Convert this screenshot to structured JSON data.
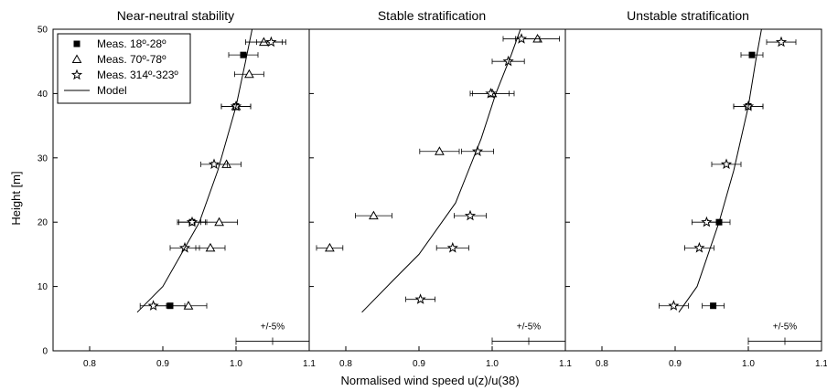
{
  "chart_data": {
    "type": "scatter",
    "xlabel": "Normalised wind speed u(z)/u(38)",
    "ylabel": "Height [m]",
    "xlim": [
      0.75,
      1.1
    ],
    "ylim": [
      0,
      50
    ],
    "x_ticks": [
      "0.8",
      "0.9",
      "1.0",
      "1.1"
    ],
    "y_ticks": [
      "0",
      "10",
      "20",
      "30",
      "40",
      "50"
    ],
    "legend": {
      "placement": "top-left",
      "entries": [
        {
          "label": "Meas. 18º-28º",
          "marker": "filled-square"
        },
        {
          "label": "Meas. 70º-78º",
          "marker": "open-triangle"
        },
        {
          "label": "Meas. 314º-323º",
          "marker": "open-star"
        },
        {
          "label": "Model",
          "marker": "line"
        }
      ]
    },
    "error_band": {
      "label": "+/-5%",
      "center": 1.05,
      "half_width": 0.05,
      "y": 1.5
    },
    "panels": [
      {
        "title": "Near-neutral stability",
        "series": [
          {
            "name": "Meas. 18º-28º",
            "marker": "filled-square",
            "points": [
              {
                "x": 0.91,
                "y": 7,
                "xerr": 0.02
              },
              {
                "x": 0.94,
                "y": 20,
                "xerr": 0.018
              },
              {
                "x": 1.0,
                "y": 38,
                "xerr": 0.02
              },
              {
                "x": 1.01,
                "y": 46,
                "xerr": 0.02
              }
            ]
          },
          {
            "name": "Meas. 70º-78º",
            "marker": "open-triangle",
            "points": [
              {
                "x": 0.935,
                "y": 7,
                "xerr": 0.025
              },
              {
                "x": 0.965,
                "y": 16,
                "xerr": 0.02
              },
              {
                "x": 0.977,
                "y": 20,
                "xerr": 0.025
              },
              {
                "x": 0.987,
                "y": 29,
                "xerr": 0.02
              },
              {
                "x": 1.0,
                "y": 38,
                "xerr": 0.02
              },
              {
                "x": 1.018,
                "y": 43,
                "xerr": 0.02
              },
              {
                "x": 1.038,
                "y": 48,
                "xerr": 0.025
              }
            ]
          },
          {
            "name": "Meas. 314º-323º",
            "marker": "open-star",
            "points": [
              {
                "x": 0.887,
                "y": 7,
                "xerr": 0.018
              },
              {
                "x": 0.93,
                "y": 16,
                "xerr": 0.02
              },
              {
                "x": 0.94,
                "y": 20,
                "xerr": 0.02
              },
              {
                "x": 0.97,
                "y": 29,
                "xerr": 0.018
              },
              {
                "x": 1.0,
                "y": 38,
                "xerr": 0.02
              },
              {
                "x": 1.048,
                "y": 48,
                "xerr": 0.02
              }
            ]
          },
          {
            "name": "Model",
            "marker": "line",
            "points": [
              {
                "x": 0.865,
                "y": 6
              },
              {
                "x": 0.9,
                "y": 10
              },
              {
                "x": 0.95,
                "y": 20
              },
              {
                "x": 0.975,
                "y": 28
              },
              {
                "x": 1.0,
                "y": 38
              },
              {
                "x": 1.013,
                "y": 45
              },
              {
                "x": 1.022,
                "y": 50
              }
            ]
          }
        ]
      },
      {
        "title": "Stable stratification",
        "series": [
          {
            "name": "Meas. 70º-78º",
            "marker": "open-triangle",
            "points": [
              {
                "x": 0.778,
                "y": 16,
                "xerr": 0.018
              },
              {
                "x": 0.838,
                "y": 21,
                "xerr": 0.025
              },
              {
                "x": 0.928,
                "y": 31,
                "xerr": 0.027
              },
              {
                "x": 1.0,
                "y": 40,
                "xerr": 0.03
              },
              {
                "x": 1.062,
                "y": 48.5,
                "xerr": 0.03
              }
            ]
          },
          {
            "name": "Meas. 314º-323º",
            "marker": "open-star",
            "points": [
              {
                "x": 0.902,
                "y": 8,
                "xerr": 0.02
              },
              {
                "x": 0.946,
                "y": 16,
                "xerr": 0.022
              },
              {
                "x": 0.97,
                "y": 21,
                "xerr": 0.022
              },
              {
                "x": 0.98,
                "y": 31,
                "xerr": 0.022
              },
              {
                "x": 0.998,
                "y": 40,
                "xerr": 0.025
              },
              {
                "x": 1.022,
                "y": 45,
                "xerr": 0.022
              },
              {
                "x": 1.04,
                "y": 48.5,
                "xerr": 0.025
              }
            ]
          },
          {
            "name": "Model",
            "marker": "line",
            "points": [
              {
                "x": 0.822,
                "y": 6
              },
              {
                "x": 0.865,
                "y": 11
              },
              {
                "x": 0.9,
                "y": 15
              },
              {
                "x": 0.95,
                "y": 23
              },
              {
                "x": 0.985,
                "y": 33
              },
              {
                "x": 1.005,
                "y": 40
              },
              {
                "x": 1.026,
                "y": 46
              },
              {
                "x": 1.045,
                "y": 52
              }
            ]
          }
        ]
      },
      {
        "title": "Unstable stratification",
        "series": [
          {
            "name": "Meas. 18º-28º",
            "marker": "filled-square",
            "points": [
              {
                "x": 0.952,
                "y": 7,
                "xerr": 0.015
              },
              {
                "x": 0.96,
                "y": 20,
                "xerr": 0.015
              },
              {
                "x": 1.0,
                "y": 38,
                "xerr": 0.02
              },
              {
                "x": 1.005,
                "y": 46,
                "xerr": 0.015
              }
            ]
          },
          {
            "name": "Meas. 314º-323º",
            "marker": "open-star",
            "points": [
              {
                "x": 0.898,
                "y": 7,
                "xerr": 0.02
              },
              {
                "x": 0.933,
                "y": 16,
                "xerr": 0.02
              },
              {
                "x": 0.943,
                "y": 20,
                "xerr": 0.02
              },
              {
                "x": 0.97,
                "y": 29,
                "xerr": 0.02
              },
              {
                "x": 1.0,
                "y": 38,
                "xerr": 0.02
              },
              {
                "x": 1.045,
                "y": 48,
                "xerr": 0.02
              }
            ]
          },
          {
            "name": "Model",
            "marker": "line",
            "points": [
              {
                "x": 0.905,
                "y": 6
              },
              {
                "x": 0.93,
                "y": 10
              },
              {
                "x": 0.96,
                "y": 20
              },
              {
                "x": 0.98,
                "y": 28
              },
              {
                "x": 1.0,
                "y": 38
              },
              {
                "x": 1.01,
                "y": 45
              },
              {
                "x": 1.018,
                "y": 50
              }
            ]
          }
        ]
      }
    ]
  }
}
